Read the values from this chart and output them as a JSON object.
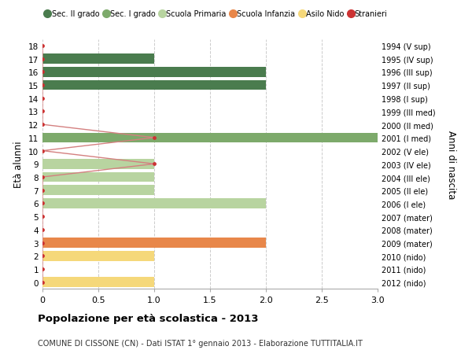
{
  "ages": [
    18,
    17,
    16,
    15,
    14,
    13,
    12,
    11,
    10,
    9,
    8,
    7,
    6,
    5,
    4,
    3,
    2,
    1,
    0
  ],
  "anni_nascita": [
    "1994 (V sup)",
    "1995 (IV sup)",
    "1996 (III sup)",
    "1997 (II sup)",
    "1998 (I sup)",
    "1999 (III med)",
    "2000 (II med)",
    "2001 (I med)",
    "2002 (V ele)",
    "2003 (IV ele)",
    "2004 (III ele)",
    "2005 (II ele)",
    "2006 (I ele)",
    "2007 (mater)",
    "2008 (mater)",
    "2009 (mater)",
    "2010 (nido)",
    "2011 (nido)",
    "2012 (nido)"
  ],
  "bar_values": [
    0,
    1,
    2,
    2,
    0,
    0,
    0,
    3,
    0,
    1,
    1,
    1,
    2,
    0,
    0,
    2,
    1,
    0,
    1
  ],
  "bar_colors": [
    "#4a7c4e",
    "#4a7c4e",
    "#4a7c4e",
    "#4a7c4e",
    "#4a7c4e",
    "#7daa6b",
    "#7daa6b",
    "#7daa6b",
    "#b8d4a0",
    "#b8d4a0",
    "#b8d4a0",
    "#b8d4a0",
    "#b8d4a0",
    "#e8874a",
    "#e8874a",
    "#e8874a",
    "#f5d87a",
    "#f5d87a",
    "#f5d87a"
  ],
  "stranieri_values": [
    0,
    0,
    0,
    0,
    0,
    0,
    0,
    1,
    0,
    1,
    0,
    0,
    0,
    0,
    0,
    0,
    0,
    0,
    0
  ],
  "color_sec2": "#4a7c4e",
  "color_sec1": "#7daa6b",
  "color_primaria": "#b8d4a0",
  "color_infanzia": "#e8874a",
  "color_nido": "#f5d87a",
  "color_stranieri": "#cc3333",
  "color_stranieri_line": "#d48080",
  "title": "Popolazione per età scolastica - 2013",
  "subtitle": "COMUNE DI CISSONE (CN) - Dati ISTAT 1° gennaio 2013 - Elaborazione TUTTITALIA.IT",
  "ylabel": "Età alunni",
  "ylabel2": "Anni di nascita",
  "xlim": [
    0,
    3.0
  ],
  "bar_height": 0.75,
  "background_color": "#ffffff",
  "grid_color": "#cccccc"
}
